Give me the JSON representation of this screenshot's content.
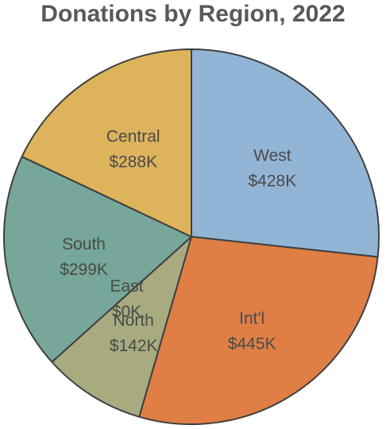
{
  "chart_data": {
    "type": "pie",
    "title": "Donations by Region, 2022",
    "unit": "$K",
    "slices": [
      {
        "name": "West",
        "value": 428,
        "value_label": "$428K",
        "color": "#92b5d6"
      },
      {
        "name": "Int'l",
        "value": 445,
        "value_label": "$445K",
        "color": "#df7f45"
      },
      {
        "name": "North",
        "value": 142,
        "value_label": "$142K",
        "color": "#a8ab80"
      },
      {
        "name": "East",
        "value": 0,
        "value_label": "$0K",
        "color": "#a8ab80"
      },
      {
        "name": "South",
        "value": 299,
        "value_label": "$299K",
        "color": "#76a79a"
      },
      {
        "name": "Central",
        "value": 288,
        "value_label": "$288K",
        "color": "#ddb35c"
      }
    ],
    "legend": false
  }
}
